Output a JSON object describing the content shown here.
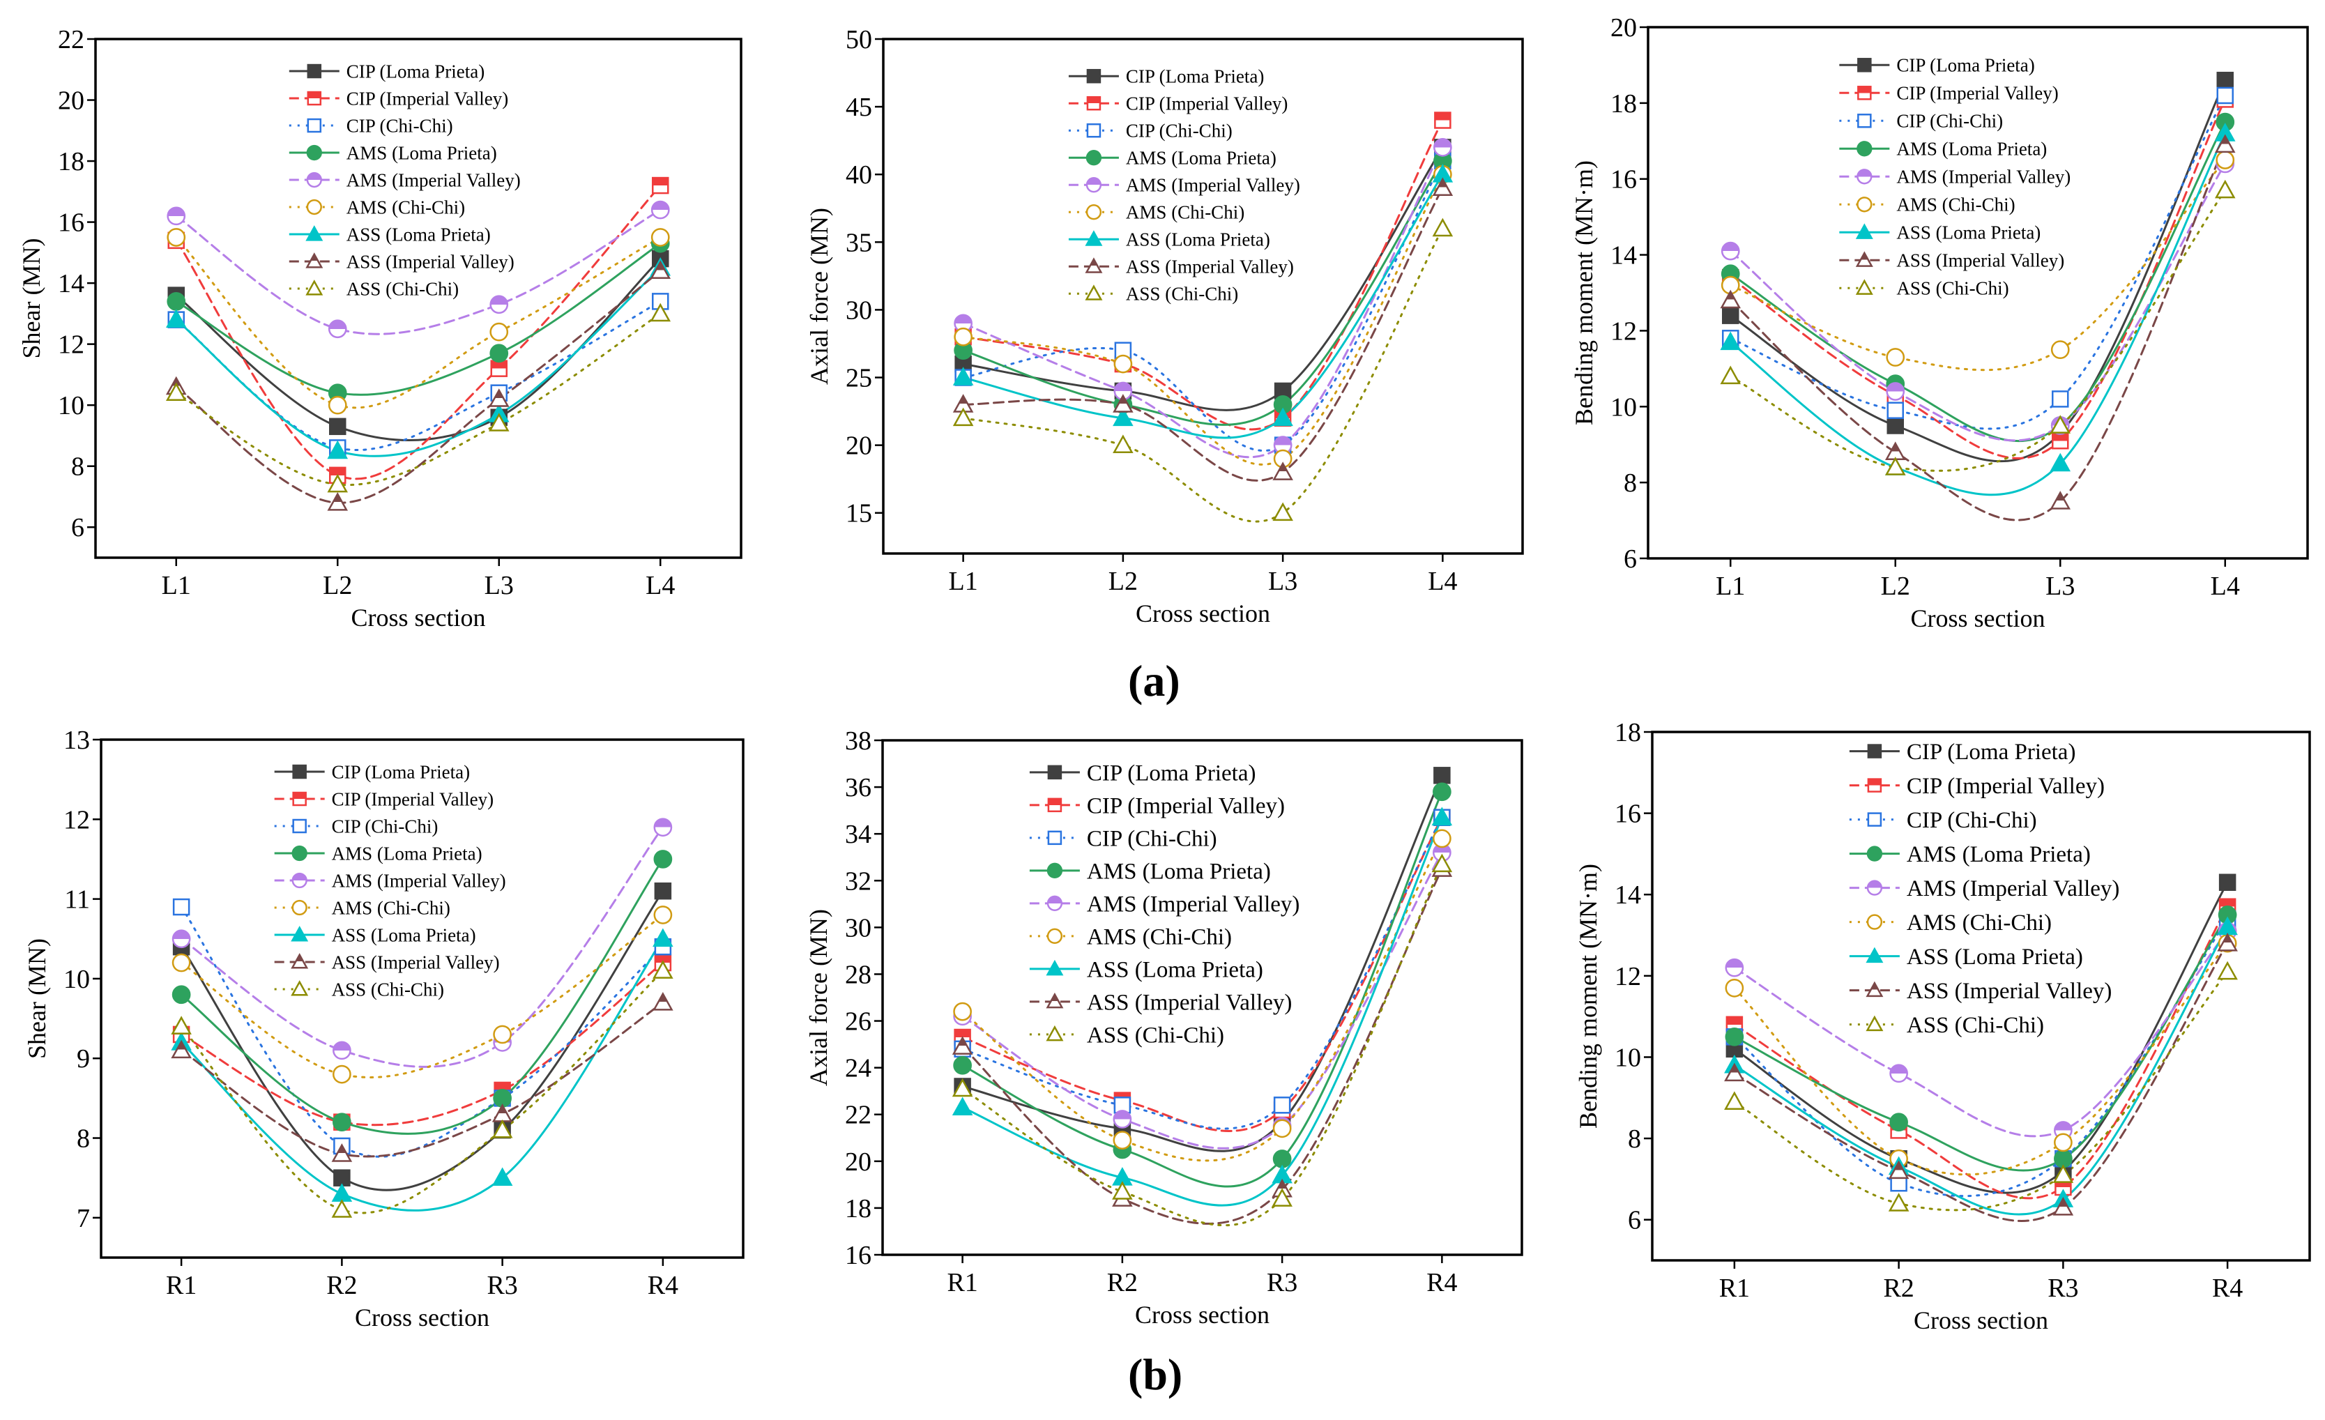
{
  "figure_labels": {
    "a": "(a)",
    "b": "(b)"
  },
  "series_styles": [
    {
      "name": "CIP (Loma Prieta)",
      "color": "#404040",
      "dash": "solid",
      "marker": "square",
      "fill": "full"
    },
    {
      "name": "CIP (Imperial Valley)",
      "color": "#f03c3c",
      "dash": "dashed",
      "marker": "square",
      "fill": "half"
    },
    {
      "name": "CIP (Chi-Chi)",
      "color": "#2a74e0",
      "dash": "dotted",
      "marker": "square",
      "fill": "none"
    },
    {
      "name": "AMS (Loma Prieta)",
      "color": "#2ea25e",
      "dash": "solid",
      "marker": "circle",
      "fill": "full"
    },
    {
      "name": "AMS (Imperial Valley)",
      "color": "#b57ee8",
      "dash": "dashed",
      "marker": "circle",
      "fill": "half"
    },
    {
      "name": "AMS (Chi-Chi)",
      "color": "#d19b12",
      "dash": "dotted",
      "marker": "circle",
      "fill": "none"
    },
    {
      "name": "ASS (Loma Prieta)",
      "color": "#00c4c8",
      "dash": "solid",
      "marker": "triangle",
      "fill": "full"
    },
    {
      "name": "ASS (Imperial Valley)",
      "color": "#7a4747",
      "dash": "dashed",
      "marker": "triangle",
      "fill": "half"
    },
    {
      "name": "ASS (Chi-Chi)",
      "color": "#8c8c00",
      "dash": "dotted",
      "marker": "triangle",
      "fill": "none"
    }
  ],
  "chart_data": [
    {
      "type": "line",
      "title": "",
      "panel": "a",
      "xlabel": "Cross section",
      "ylabel": "Shear (MN)",
      "categories": [
        "L1",
        "L2",
        "L3",
        "L4"
      ],
      "ylim": [
        5,
        22
      ],
      "yticks": [
        6,
        8,
        10,
        12,
        14,
        16,
        18,
        20,
        22
      ],
      "grid": false,
      "legend": "top-center",
      "series": [
        {
          "name": "CIP (Loma Prieta)",
          "values": [
            13.6,
            9.3,
            9.6,
            14.8
          ]
        },
        {
          "name": "CIP (Imperial Valley)",
          "values": [
            15.4,
            7.7,
            11.2,
            17.2
          ]
        },
        {
          "name": "CIP (Chi-Chi)",
          "values": [
            12.8,
            8.6,
            10.4,
            13.4
          ]
        },
        {
          "name": "AMS (Loma Prieta)",
          "values": [
            13.4,
            10.4,
            11.7,
            15.3
          ]
        },
        {
          "name": "AMS (Imperial Valley)",
          "values": [
            16.2,
            12.5,
            13.3,
            16.4
          ]
        },
        {
          "name": "AMS (Chi-Chi)",
          "values": [
            15.5,
            10.0,
            12.4,
            15.5
          ]
        },
        {
          "name": "ASS (Loma Prieta)",
          "values": [
            12.8,
            8.5,
            9.7,
            14.5
          ]
        },
        {
          "name": "ASS (Imperial Valley)",
          "values": [
            10.6,
            6.8,
            10.2,
            14.4
          ]
        },
        {
          "name": "ASS (Chi-Chi)",
          "values": [
            10.4,
            7.4,
            9.4,
            13.0
          ]
        }
      ]
    },
    {
      "type": "line",
      "title": "",
      "panel": "a",
      "xlabel": "Cross section",
      "ylabel": "Axial force (MN)",
      "categories": [
        "L1",
        "L2",
        "L3",
        "L4"
      ],
      "ylim": [
        12,
        50
      ],
      "yticks": [
        15,
        20,
        25,
        30,
        35,
        40,
        45,
        50
      ],
      "grid": false,
      "legend": "top-center",
      "series": [
        {
          "name": "CIP (Loma Prieta)",
          "values": [
            26,
            24,
            24,
            42
          ]
        },
        {
          "name": "CIP (Imperial Valley)",
          "values": [
            28,
            26,
            22,
            44
          ]
        },
        {
          "name": "CIP (Chi-Chi)",
          "values": [
            25,
            27,
            20,
            41
          ]
        },
        {
          "name": "AMS (Loma Prieta)",
          "values": [
            27,
            23,
            23,
            41
          ]
        },
        {
          "name": "AMS (Imperial Valley)",
          "values": [
            29,
            24,
            20,
            42
          ]
        },
        {
          "name": "AMS (Chi-Chi)",
          "values": [
            28,
            26,
            19,
            40
          ]
        },
        {
          "name": "ASS (Loma Prieta)",
          "values": [
            25,
            22,
            22,
            40
          ]
        },
        {
          "name": "ASS (Imperial Valley)",
          "values": [
            23,
            23,
            18,
            39
          ]
        },
        {
          "name": "ASS (Chi-Chi)",
          "values": [
            22,
            20,
            15,
            36
          ]
        }
      ]
    },
    {
      "type": "line",
      "title": "",
      "panel": "a",
      "xlabel": "Cross section",
      "ylabel": "Bending moment (MN·m)",
      "categories": [
        "L1",
        "L2",
        "L3",
        "L4"
      ],
      "ylim": [
        6,
        20
      ],
      "yticks": [
        6,
        8,
        10,
        12,
        14,
        16,
        18,
        20
      ],
      "grid": false,
      "legend": "top-center",
      "series": [
        {
          "name": "CIP (Loma Prieta)",
          "values": [
            12.4,
            9.5,
            9.3,
            18.6
          ]
        },
        {
          "name": "CIP (Imperial Valley)",
          "values": [
            13.4,
            10.3,
            9.1,
            18.1
          ]
        },
        {
          "name": "CIP (Chi-Chi)",
          "values": [
            11.8,
            9.9,
            10.2,
            18.2
          ]
        },
        {
          "name": "AMS (Loma Prieta)",
          "values": [
            13.5,
            10.6,
            9.5,
            17.5
          ]
        },
        {
          "name": "AMS (Imperial Valley)",
          "values": [
            14.1,
            10.4,
            9.5,
            16.4
          ]
        },
        {
          "name": "AMS (Chi-Chi)",
          "values": [
            13.2,
            11.3,
            11.5,
            16.5
          ]
        },
        {
          "name": "ASS (Loma Prieta)",
          "values": [
            11.7,
            8.4,
            8.5,
            17.2
          ]
        },
        {
          "name": "ASS (Imperial Valley)",
          "values": [
            12.8,
            8.8,
            7.5,
            16.9
          ]
        },
        {
          "name": "ASS (Chi-Chi)",
          "values": [
            10.8,
            8.4,
            9.5,
            15.7
          ]
        }
      ]
    },
    {
      "type": "line",
      "title": "",
      "panel": "b",
      "xlabel": "Cross section",
      "ylabel": "Shear (MN)",
      "categories": [
        "R1",
        "R2",
        "R3",
        "R4"
      ],
      "ylim": [
        6.5,
        13
      ],
      "yticks": [
        7,
        8,
        9,
        10,
        11,
        12,
        13
      ],
      "grid": false,
      "legend": "top-center",
      "series": [
        {
          "name": "CIP (Loma Prieta)",
          "values": [
            10.4,
            7.5,
            8.1,
            11.1
          ]
        },
        {
          "name": "CIP (Imperial Valley)",
          "values": [
            9.3,
            8.2,
            8.6,
            10.2
          ]
        },
        {
          "name": "CIP (Chi-Chi)",
          "values": [
            10.9,
            7.9,
            8.5,
            10.4
          ]
        },
        {
          "name": "AMS (Loma Prieta)",
          "values": [
            9.8,
            8.2,
            8.5,
            11.5
          ]
        },
        {
          "name": "AMS (Imperial Valley)",
          "values": [
            10.5,
            9.1,
            9.2,
            11.9
          ]
        },
        {
          "name": "AMS (Chi-Chi)",
          "values": [
            10.2,
            8.8,
            9.3,
            10.8
          ]
        },
        {
          "name": "ASS (Loma Prieta)",
          "values": [
            9.2,
            7.3,
            7.5,
            10.5
          ]
        },
        {
          "name": "ASS (Imperial Valley)",
          "values": [
            9.1,
            7.8,
            8.3,
            9.7
          ]
        },
        {
          "name": "ASS (Chi-Chi)",
          "values": [
            9.4,
            7.1,
            8.1,
            10.1
          ]
        }
      ]
    },
    {
      "type": "line",
      "title": "",
      "panel": "b",
      "xlabel": "Cross section",
      "ylabel": "Axial force (MN)",
      "categories": [
        "R1",
        "R2",
        "R3",
        "R4"
      ],
      "ylim": [
        16,
        38
      ],
      "yticks": [
        16,
        18,
        20,
        22,
        24,
        26,
        28,
        30,
        32,
        34,
        36,
        38
      ],
      "grid": false,
      "legend": "top-center",
      "series": [
        {
          "name": "CIP (Loma Prieta)",
          "values": [
            23.2,
            21.4,
            21.7,
            36.5
          ]
        },
        {
          "name": "CIP (Imperial Valley)",
          "values": [
            25.3,
            22.6,
            22.2,
            34.7
          ]
        },
        {
          "name": "CIP (Chi-Chi)",
          "values": [
            24.8,
            22.4,
            22.4,
            34.7
          ]
        },
        {
          "name": "AMS (Loma Prieta)",
          "values": [
            24.1,
            20.5,
            20.1,
            35.8
          ]
        },
        {
          "name": "AMS (Imperial Valley)",
          "values": [
            26.2,
            21.8,
            21.5,
            33.2
          ]
        },
        {
          "name": "AMS (Chi-Chi)",
          "values": [
            26.4,
            20.9,
            21.4,
            33.8
          ]
        },
        {
          "name": "ASS (Loma Prieta)",
          "values": [
            22.3,
            19.3,
            19.4,
            34.7
          ]
        },
        {
          "name": "ASS (Imperial Valley)",
          "values": [
            24.9,
            18.4,
            18.8,
            32.5
          ]
        },
        {
          "name": "ASS (Chi-Chi)",
          "values": [
            23.1,
            18.7,
            18.4,
            32.7
          ]
        }
      ]
    },
    {
      "type": "line",
      "title": "",
      "panel": "b",
      "xlabel": "Cross section",
      "ylabel": "Bending moment (MN·m)",
      "categories": [
        "R1",
        "R2",
        "R3",
        "R4"
      ],
      "ylim": [
        5,
        18
      ],
      "yticks": [
        6,
        8,
        10,
        12,
        14,
        16,
        18
      ],
      "grid": false,
      "legend": "top-center",
      "series": [
        {
          "name": "CIP (Loma Prieta)",
          "values": [
            10.2,
            7.5,
            7.2,
            14.3
          ]
        },
        {
          "name": "CIP (Imperial Valley)",
          "values": [
            10.8,
            8.2,
            6.8,
            13.7
          ]
        },
        {
          "name": "CIP (Chi-Chi)",
          "values": [
            10.5,
            6.9,
            7.5,
            13.4
          ]
        },
        {
          "name": "AMS (Loma Prieta)",
          "values": [
            10.5,
            8.4,
            7.5,
            13.5
          ]
        },
        {
          "name": "AMS (Imperial Valley)",
          "values": [
            12.2,
            9.6,
            8.2,
            13.1
          ]
        },
        {
          "name": "AMS (Chi-Chi)",
          "values": [
            11.7,
            7.5,
            7.9,
            12.8
          ]
        },
        {
          "name": "ASS (Loma Prieta)",
          "values": [
            9.8,
            7.3,
            6.5,
            13.2
          ]
        },
        {
          "name": "ASS (Imperial Valley)",
          "values": [
            9.6,
            7.2,
            6.3,
            12.8
          ]
        },
        {
          "name": "ASS (Chi-Chi)",
          "values": [
            8.9,
            6.4,
            7.1,
            12.1
          ]
        }
      ]
    }
  ]
}
